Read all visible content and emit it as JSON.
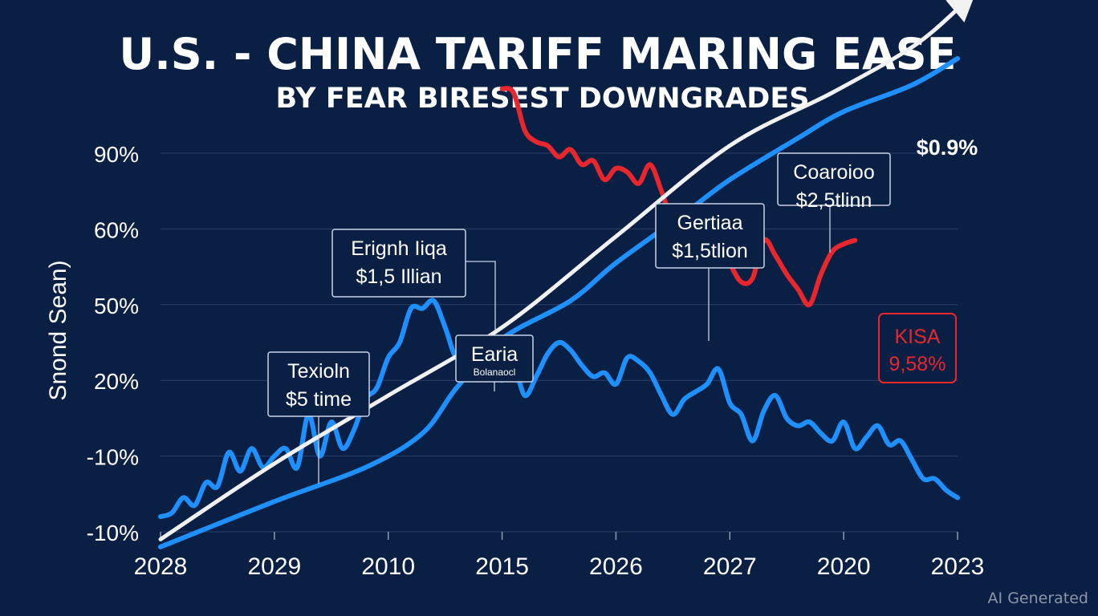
{
  "chart_data": {
    "type": "line",
    "title": "U.S. - CHINA TARIFF MARING EASE",
    "subtitle": "BY FEAR BIRESEST DOWNGRADES",
    "ylabel": "Snond Sean)",
    "xlabel": "",
    "x_tick_labels": [
      "2028",
      "2029",
      "2010",
      "2015",
      "2026",
      "2027",
      "2020",
      "2023"
    ],
    "y_tick_labels": [
      "90%",
      "60%",
      "50%",
      "20%",
      "-10%",
      "-10%"
    ],
    "grid": true,
    "colors": {
      "background": "#0a1f44",
      "grid": "#2a4068",
      "white_series": "#f2f2f2",
      "blue_series": "#1e90ff",
      "red_series": "#e8262e"
    },
    "series": [
      {
        "name": "white-trend",
        "color": "#f2f2f2",
        "x": [
          0,
          1,
          2,
          3,
          4,
          5,
          5.9,
          6.6,
          7
        ],
        "y": [
          -1.1,
          -0.1,
          0.8,
          1.7,
          2.9,
          4.1,
          4.8,
          5.4,
          5.9
        ]
      },
      {
        "name": "blue-smooth",
        "color": "#1e90ff",
        "x": [
          0,
          1,
          1.8,
          2.3,
          2.6,
          3,
          3.6,
          4,
          4.6,
          5,
          5.6,
          6,
          6.6,
          7
        ],
        "y": [
          -1.2,
          -0.6,
          -0.15,
          0.3,
          0.9,
          1.55,
          2.05,
          2.55,
          3.2,
          3.65,
          4.2,
          4.55,
          4.9,
          5.25
        ]
      },
      {
        "name": "blue-volatile",
        "color": "#1e90ff",
        "x": [
          0,
          0.1,
          0.2,
          0.3,
          0.4,
          0.5,
          0.6,
          0.7,
          0.8,
          0.9,
          1.0,
          1.1,
          1.2,
          1.3,
          1.4,
          1.5,
          1.6,
          1.7,
          1.8,
          1.9,
          2.0,
          2.1,
          2.2,
          2.3,
          2.4,
          2.5,
          2.6,
          2.7,
          2.8,
          2.9,
          3.0,
          3.1,
          3.2,
          3.3,
          3.4,
          3.5,
          3.6,
          3.7,
          3.8,
          3.9,
          4.0,
          4.1,
          4.2,
          4.3,
          4.4,
          4.5,
          4.6,
          4.7,
          4.8,
          4.9,
          5.0,
          5.1,
          5.2,
          5.3,
          5.4,
          5.5,
          5.6,
          5.7,
          5.8,
          5.9,
          6.0,
          6.1,
          6.2,
          6.3,
          6.4,
          6.5,
          6.6,
          6.7,
          6.8,
          6.9,
          7.0
        ],
        "y": [
          -0.8,
          -0.75,
          -0.55,
          -0.65,
          -0.35,
          -0.4,
          0.05,
          -0.2,
          0.1,
          -0.15,
          0.0,
          0.1,
          -0.15,
          0.55,
          0.0,
          0.45,
          0.1,
          0.35,
          0.75,
          0.9,
          1.3,
          1.5,
          1.95,
          1.95,
          2.05,
          1.7,
          1.3,
          1.5,
          1.45,
          1.2,
          1.0,
          1.2,
          0.8,
          1.05,
          1.35,
          1.5,
          1.4,
          1.2,
          1.05,
          1.1,
          0.95,
          1.3,
          1.25,
          1.1,
          0.8,
          0.55,
          0.75,
          0.85,
          0.95,
          1.15,
          0.7,
          0.55,
          0.2,
          0.6,
          0.8,
          0.5,
          0.4,
          0.45,
          0.3,
          0.2,
          0.45,
          0.1,
          0.25,
          0.4,
          0.15,
          0.2,
          -0.05,
          -0.3,
          -0.3,
          -0.45,
          -0.55
        ]
      },
      {
        "name": "red-volatile",
        "color": "#e8262e",
        "x": [
          3.0,
          3.1,
          3.2,
          3.3,
          3.4,
          3.5,
          3.6,
          3.7,
          3.8,
          3.9,
          4.0,
          4.1,
          4.2,
          4.3,
          4.4,
          4.5,
          4.6,
          4.7,
          4.8,
          4.9,
          5.0,
          5.1,
          5.2,
          5.3,
          5.4,
          5.5,
          5.6,
          5.7,
          5.8,
          5.9,
          6.0,
          6.1
        ],
        "y": [
          4.85,
          4.8,
          4.3,
          4.15,
          4.1,
          3.95,
          4.05,
          3.85,
          3.9,
          3.65,
          3.8,
          3.75,
          3.6,
          3.85,
          3.5,
          3.1,
          3.2,
          2.95,
          2.85,
          2.9,
          2.55,
          2.3,
          2.35,
          2.85,
          2.65,
          2.4,
          2.2,
          2.0,
          2.4,
          2.7,
          2.8,
          2.85
        ]
      }
    ],
    "annotations": [
      {
        "title": "Texioln",
        "value": "$5 time"
      },
      {
        "title": "Erignh Iiqa",
        "value": "$1,5 Illian"
      },
      {
        "title": "Earia",
        "value": "Bolanaocl"
      },
      {
        "title": "Gertiaa",
        "value": "$1,5tlion"
      },
      {
        "title": "Coaroioo",
        "value": "$2,5tlinn"
      }
    ],
    "highlight": {
      "title": "KISA",
      "value": "9,58%"
    },
    "arrow_label": "$0.9%"
  },
  "watermark": "AI Generated"
}
